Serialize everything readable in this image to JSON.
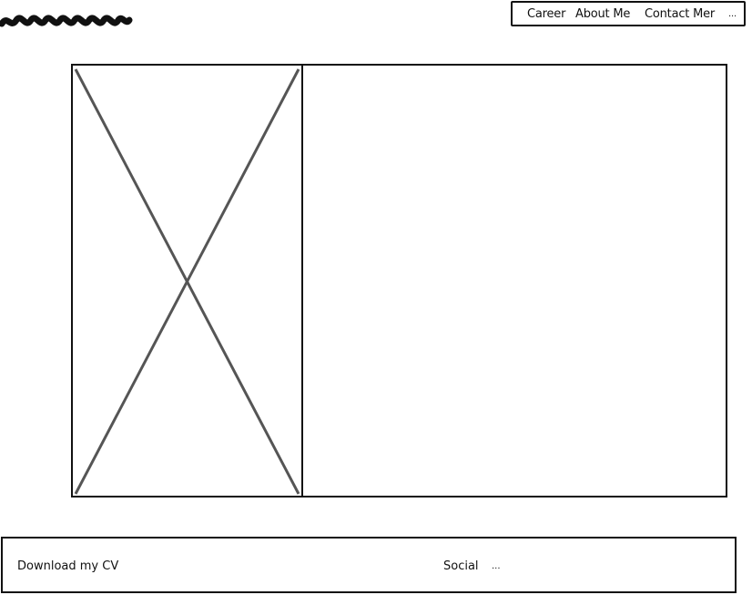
{
  "header": {
    "nav": {
      "items": [
        "Career",
        "About Me",
        "Contact Mer",
        "..."
      ]
    }
  },
  "main": {
    "image_placeholder": "image-placeholder",
    "content_area": ""
  },
  "footer": {
    "download_cv": "Download my CV",
    "social": "Social",
    "more": "..."
  },
  "colors": {
    "stroke": "#111111",
    "placeholder_x": "#555555",
    "background": "#ffffff"
  }
}
